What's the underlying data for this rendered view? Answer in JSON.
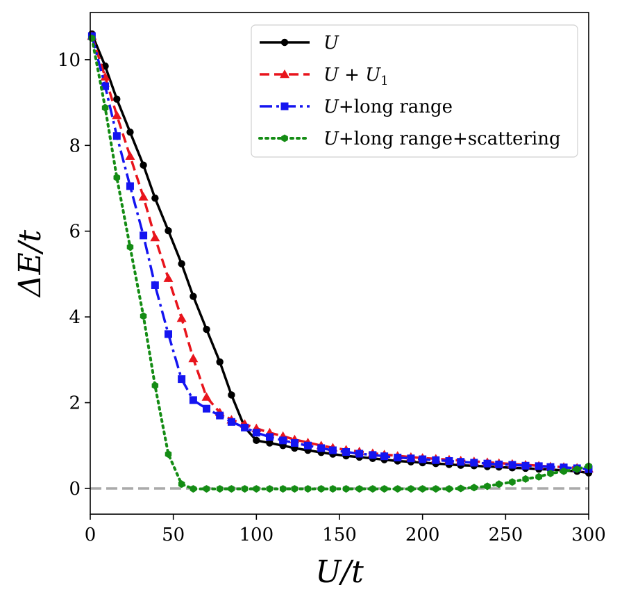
{
  "chart_data": {
    "type": "line",
    "xlabel": "U/t",
    "ylabel": "ΔE/t",
    "xlim": [
      0,
      300
    ],
    "ylim": [
      -0.6,
      11.1
    ],
    "xticks": [
      "0",
      "50",
      "100",
      "150",
      "200",
      "250",
      "300"
    ],
    "yticks": [
      "0",
      "2",
      "4",
      "6",
      "8",
      "10"
    ],
    "legend_position": "top-right",
    "reference_line": {
      "y": 0,
      "style": "dashed",
      "color": "#aaaaaa"
    },
    "series": [
      {
        "name": "U",
        "legend": {
          "main": "U",
          "sub": "",
          "rest": ""
        },
        "color": "#000000",
        "line_style": "solid",
        "marker": "circle",
        "x": [
          1,
          9,
          16,
          24,
          32,
          39,
          47,
          55,
          62,
          70,
          78,
          85,
          93,
          100,
          108,
          116,
          123,
          131,
          139,
          146,
          154,
          162,
          170,
          177,
          185,
          193,
          200,
          208,
          216,
          223,
          231,
          239,
          246,
          254,
          262,
          270,
          277,
          285,
          293,
          300
        ],
        "y": [
          10.6,
          9.85,
          9.08,
          8.31,
          7.54,
          6.77,
          6.01,
          5.24,
          4.48,
          3.71,
          2.95,
          2.18,
          1.42,
          1.12,
          1.06,
          1.0,
          0.94,
          0.89,
          0.84,
          0.8,
          0.76,
          0.73,
          0.7,
          0.67,
          0.64,
          0.62,
          0.6,
          0.58,
          0.56,
          0.54,
          0.53,
          0.51,
          0.5,
          0.48,
          0.47,
          0.45,
          0.44,
          0.42,
          0.4,
          0.36
        ]
      },
      {
        "name": "U + U1",
        "legend": {
          "main": "U + U",
          "sub": "1",
          "rest": ""
        },
        "color": "#e8141c",
        "line_style": "dashed",
        "marker": "triangle",
        "x": [
          1,
          9,
          16,
          24,
          32,
          39,
          47,
          55,
          62,
          70,
          78,
          85,
          93,
          100,
          108,
          116,
          123,
          131,
          139,
          146,
          154,
          162,
          170,
          177,
          185,
          193,
          200,
          208,
          216,
          223,
          231,
          239,
          246,
          254,
          262,
          270,
          277,
          285,
          293,
          300
        ],
        "y": [
          10.55,
          9.6,
          8.7,
          7.75,
          6.8,
          5.85,
          4.9,
          3.97,
          3.03,
          2.13,
          1.77,
          1.6,
          1.5,
          1.4,
          1.3,
          1.22,
          1.14,
          1.07,
          1.0,
          0.95,
          0.9,
          0.86,
          0.82,
          0.79,
          0.76,
          0.73,
          0.71,
          0.69,
          0.67,
          0.65,
          0.63,
          0.61,
          0.59,
          0.57,
          0.55,
          0.53,
          0.51,
          0.5,
          0.48,
          0.46
        ]
      },
      {
        "name": "U+long range",
        "legend": {
          "main": "U",
          "sub": "",
          "rest": "+long range"
        },
        "color": "#1414f0",
        "line_style": "dashdot",
        "marker": "square",
        "x": [
          1,
          9,
          16,
          24,
          32,
          39,
          47,
          55,
          62,
          70,
          78,
          85,
          93,
          100,
          108,
          116,
          123,
          131,
          139,
          146,
          154,
          162,
          170,
          177,
          185,
          193,
          200,
          208,
          216,
          223,
          231,
          239,
          246,
          254,
          262,
          270,
          277,
          285,
          293,
          300
        ],
        "y": [
          10.55,
          9.38,
          8.22,
          7.05,
          5.9,
          4.74,
          3.6,
          2.55,
          2.06,
          1.86,
          1.7,
          1.55,
          1.42,
          1.3,
          1.2,
          1.12,
          1.06,
          1.0,
          0.94,
          0.89,
          0.85,
          0.81,
          0.78,
          0.75,
          0.72,
          0.7,
          0.68,
          0.66,
          0.64,
          0.62,
          0.6,
          0.58,
          0.56,
          0.55,
          0.53,
          0.52,
          0.5,
          0.49,
          0.47,
          0.45
        ]
      },
      {
        "name": "U+long range+scattering",
        "legend": {
          "main": "U",
          "sub": "",
          "rest": "+long range+scattering"
        },
        "color": "#148c14",
        "line_style": "dotted",
        "marker": "hexagon",
        "x": [
          1,
          9,
          16,
          24,
          32,
          39,
          47,
          55,
          62,
          70,
          78,
          85,
          93,
          100,
          108,
          116,
          123,
          131,
          139,
          146,
          154,
          162,
          170,
          177,
          185,
          193,
          200,
          208,
          216,
          223,
          231,
          239,
          246,
          254,
          262,
          270,
          277,
          285,
          293,
          300
        ],
        "y": [
          10.5,
          8.88,
          7.25,
          5.63,
          4.02,
          2.4,
          0.8,
          0.1,
          -0.01,
          -0.01,
          -0.01,
          -0.01,
          -0.01,
          -0.01,
          -0.01,
          -0.01,
          -0.01,
          -0.01,
          -0.01,
          -0.01,
          -0.01,
          -0.01,
          -0.01,
          -0.01,
          -0.01,
          -0.01,
          -0.01,
          -0.01,
          -0.01,
          0.0,
          0.02,
          0.05,
          0.1,
          0.15,
          0.22,
          0.27,
          0.35,
          0.4,
          0.45,
          0.52
        ]
      }
    ]
  }
}
